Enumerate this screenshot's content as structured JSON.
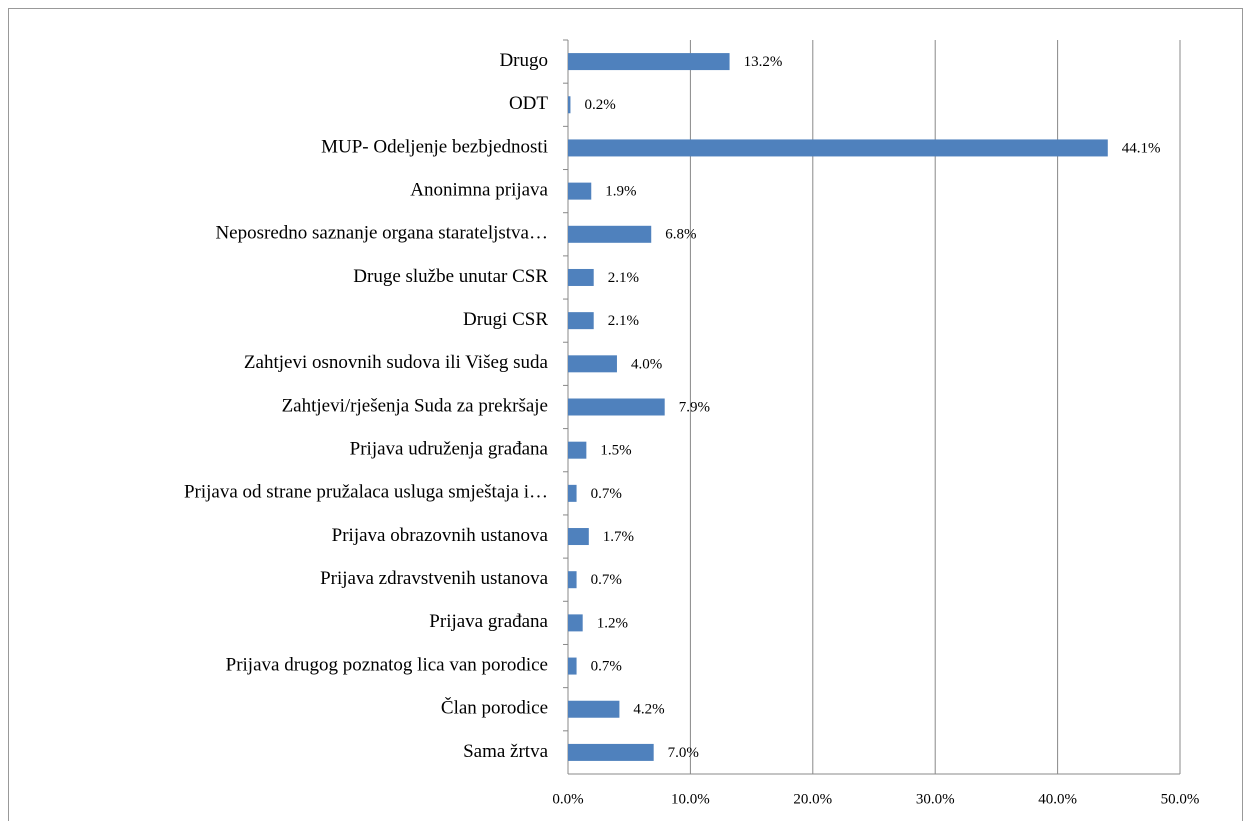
{
  "chart_data": {
    "type": "bar",
    "orientation": "horizontal",
    "categories": [
      "Drugo",
      "ODT",
      "MUP- Odeljenje bezbjednosti",
      "Anonimna prijava",
      "Neposredno saznanje organa starateljstva…",
      "Druge službe unutar CSR",
      "Drugi CSR",
      "Zahtjevi osnovnih sudova ili Višeg suda",
      "Zahtjevi/rješenja Suda za prekršaje",
      "Prijava udruženja građana",
      "Prijava od strane pružalaca usluga smještaja i…",
      "Prijava obrazovnih ustanova",
      "Prijava zdravstvenih ustanova",
      "Prijava  građana",
      "Prijava drugog poznatog lica van porodice",
      "Član porodice",
      "Sama žrtva"
    ],
    "values": [
      13.2,
      0.2,
      44.1,
      1.9,
      6.8,
      2.1,
      2.1,
      4.0,
      7.9,
      1.5,
      0.7,
      1.7,
      0.7,
      1.2,
      0.7,
      4.2,
      7.0
    ],
    "value_labels": [
      "13.2%",
      "0.2%",
      "44.1%",
      "1.9%",
      "6.8%",
      "2.1%",
      "2.1%",
      "4.0%",
      "7.9%",
      "1.5%",
      "0.7%",
      "1.7%",
      "0.7%",
      "1.2%",
      "0.7%",
      "4.2%",
      "7.0%"
    ],
    "color": "#4f81bd",
    "xlim": [
      0,
      50
    ],
    "xticks": [
      {
        "value": 0,
        "label": "0.0%"
      },
      {
        "value": 10,
        "label": "10.0%"
      },
      {
        "value": 20,
        "label": "20.0%"
      },
      {
        "value": 30,
        "label": "30.0%"
      },
      {
        "value": 40,
        "label": "40.0%"
      },
      {
        "value": 50,
        "label": "50.0%"
      }
    ],
    "grid": true
  }
}
